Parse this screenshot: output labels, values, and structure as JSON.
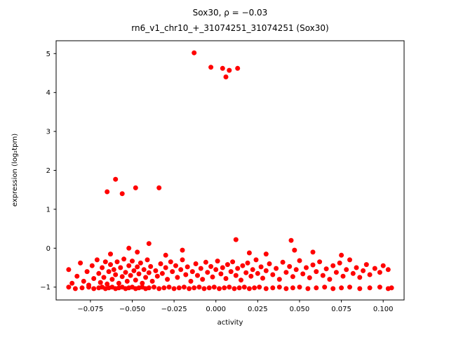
{
  "chart_data": {
    "type": "scatter",
    "title": "Sox30, ρ = −0.03",
    "subtitle": "rn6_v1_chr10_+_31074251_31074251 (Sox30)",
    "xlabel": "activity",
    "ylabel": "expression (log₂tpm)",
    "xlim": [
      -0.0955,
      0.1125
    ],
    "ylim": [
      -1.33,
      5.33
    ],
    "grid": false,
    "legend": "none",
    "marker_color": "#ff0000",
    "marker_radius": 3.5,
    "x_ticks": {
      "values": [
        -0.075,
        -0.05,
        -0.025,
        0.0,
        0.025,
        0.05,
        0.075,
        0.1
      ],
      "labels": [
        "−0.075",
        "−0.050",
        "−0.025",
        "0.000",
        "0.025",
        "0.050",
        "0.075",
        "0.100"
      ]
    },
    "y_ticks": {
      "values": [
        -1,
        0,
        1,
        2,
        3,
        4,
        5
      ],
      "labels": [
        "−1",
        "0",
        "1",
        "2",
        "3",
        "4",
        "5"
      ]
    },
    "points": [
      [
        -0.013,
        5.02
      ],
      [
        -0.003,
        4.65
      ],
      [
        0.004,
        4.62
      ],
      [
        0.006,
        4.4
      ],
      [
        0.008,
        4.57
      ],
      [
        0.013,
        4.62
      ],
      [
        -0.065,
        1.45
      ],
      [
        -0.06,
        1.77
      ],
      [
        -0.056,
        1.4
      ],
      [
        -0.048,
        1.55
      ],
      [
        -0.034,
        1.55
      ],
      [
        -0.063,
        -0.15
      ],
      [
        -0.052,
        0.0
      ],
      [
        -0.047,
        -0.1
      ],
      [
        -0.04,
        0.12
      ],
      [
        -0.03,
        -0.18
      ],
      [
        -0.02,
        -0.05
      ],
      [
        0.012,
        0.22
      ],
      [
        0.02,
        -0.12
      ],
      [
        0.03,
        -0.15
      ],
      [
        0.045,
        0.2
      ],
      [
        0.047,
        -0.05
      ],
      [
        0.058,
        -0.1
      ],
      [
        0.075,
        -0.18
      ],
      [
        -0.088,
        -1.0
      ],
      [
        -0.084,
        -1.04
      ],
      [
        -0.08,
        -1.02
      ],
      [
        -0.076,
        -1.0
      ],
      [
        -0.073,
        -1.04
      ],
      [
        -0.07,
        -1.02
      ],
      [
        -0.068,
        -1.0
      ],
      [
        -0.066,
        -1.04
      ],
      [
        -0.064,
        -1.02
      ],
      [
        -0.062,
        -1.0
      ],
      [
        -0.06,
        -1.04
      ],
      [
        -0.058,
        -1.02
      ],
      [
        -0.056,
        -1.0
      ],
      [
        -0.054,
        -1.04
      ],
      [
        -0.052,
        -1.02
      ],
      [
        -0.05,
        -1.0
      ],
      [
        -0.048,
        -1.04
      ],
      [
        -0.046,
        -1.02
      ],
      [
        -0.044,
        -1.0
      ],
      [
        -0.042,
        -1.04
      ],
      [
        -0.04,
        -1.02
      ],
      [
        -0.037,
        -1.0
      ],
      [
        -0.034,
        -1.04
      ],
      [
        -0.031,
        -1.02
      ],
      [
        -0.028,
        -1.0
      ],
      [
        -0.025,
        -1.04
      ],
      [
        -0.022,
        -1.02
      ],
      [
        -0.019,
        -1.0
      ],
      [
        -0.016,
        -1.04
      ],
      [
        -0.013,
        -1.02
      ],
      [
        -0.01,
        -1.0
      ],
      [
        -0.007,
        -1.04
      ],
      [
        -0.004,
        -1.02
      ],
      [
        -0.001,
        -1.0
      ],
      [
        0.002,
        -1.04
      ],
      [
        0.005,
        -1.02
      ],
      [
        0.008,
        -1.0
      ],
      [
        0.011,
        -1.04
      ],
      [
        0.014,
        -1.02
      ],
      [
        0.017,
        -1.0
      ],
      [
        0.02,
        -1.04
      ],
      [
        0.023,
        -1.02
      ],
      [
        0.026,
        -1.0
      ],
      [
        0.03,
        -1.04
      ],
      [
        0.034,
        -1.02
      ],
      [
        0.038,
        -1.0
      ],
      [
        0.042,
        -1.04
      ],
      [
        0.046,
        -1.02
      ],
      [
        0.05,
        -1.0
      ],
      [
        0.055,
        -1.04
      ],
      [
        0.06,
        -1.02
      ],
      [
        0.065,
        -1.0
      ],
      [
        0.07,
        -1.04
      ],
      [
        0.075,
        -1.02
      ],
      [
        0.08,
        -1.0
      ],
      [
        0.086,
        -1.04
      ],
      [
        0.092,
        -1.02
      ],
      [
        0.098,
        -1.0
      ],
      [
        0.103,
        -1.04
      ],
      [
        0.105,
        -1.02
      ],
      [
        -0.088,
        -0.55
      ],
      [
        -0.086,
        -0.9
      ],
      [
        -0.083,
        -0.72
      ],
      [
        -0.081,
        -0.38
      ],
      [
        -0.079,
        -0.85
      ],
      [
        -0.077,
        -0.6
      ],
      [
        -0.076,
        -0.95
      ],
      [
        -0.074,
        -0.45
      ],
      [
        -0.073,
        -0.78
      ],
      [
        -0.071,
        -0.3
      ],
      [
        -0.07,
        -0.65
      ],
      [
        -0.069,
        -0.88
      ],
      [
        -0.068,
        -0.5
      ],
      [
        -0.067,
        -0.75
      ],
      [
        -0.066,
        -0.35
      ],
      [
        -0.065,
        -0.92
      ],
      [
        -0.064,
        -0.6
      ],
      [
        -0.063,
        -0.42
      ],
      [
        -0.062,
        -0.8
      ],
      [
        -0.061,
        -0.55
      ],
      [
        -0.06,
        -0.68
      ],
      [
        -0.059,
        -0.35
      ],
      [
        -0.058,
        -0.9
      ],
      [
        -0.057,
        -0.5
      ],
      [
        -0.056,
        -0.73
      ],
      [
        -0.055,
        -0.28
      ],
      [
        -0.054,
        -0.62
      ],
      [
        -0.053,
        -0.85
      ],
      [
        -0.052,
        -0.45
      ],
      [
        -0.051,
        -0.7
      ],
      [
        -0.05,
        -0.33
      ],
      [
        -0.049,
        -0.58
      ],
      [
        -0.048,
        -0.82
      ],
      [
        -0.047,
        -0.48
      ],
      [
        -0.046,
        -0.66
      ],
      [
        -0.045,
        -0.38
      ],
      [
        -0.044,
        -0.9
      ],
      [
        -0.043,
        -0.55
      ],
      [
        -0.042,
        -0.75
      ],
      [
        -0.041,
        -0.3
      ],
      [
        -0.04,
        -0.63
      ],
      [
        -0.039,
        -0.47
      ],
      [
        -0.038,
        -0.85
      ],
      [
        -0.036,
        -0.58
      ],
      [
        -0.035,
        -0.72
      ],
      [
        -0.033,
        -0.4
      ],
      [
        -0.032,
        -0.65
      ],
      [
        -0.03,
        -0.5
      ],
      [
        -0.029,
        -0.8
      ],
      [
        -0.027,
        -0.35
      ],
      [
        -0.026,
        -0.6
      ],
      [
        -0.024,
        -0.45
      ],
      [
        -0.023,
        -0.75
      ],
      [
        -0.021,
        -0.55
      ],
      [
        -0.02,
        -0.3
      ],
      [
        -0.018,
        -0.68
      ],
      [
        -0.017,
        -0.48
      ],
      [
        -0.015,
        -0.85
      ],
      [
        -0.014,
        -0.6
      ],
      [
        -0.012,
        -0.4
      ],
      [
        -0.011,
        -0.7
      ],
      [
        -0.009,
        -0.52
      ],
      [
        -0.008,
        -0.8
      ],
      [
        -0.006,
        -0.36
      ],
      [
        -0.005,
        -0.62
      ],
      [
        -0.003,
        -0.47
      ],
      [
        -0.002,
        -0.74
      ],
      [
        0.0,
        -0.55
      ],
      [
        0.001,
        -0.33
      ],
      [
        0.003,
        -0.66
      ],
      [
        0.004,
        -0.5
      ],
      [
        0.006,
        -0.78
      ],
      [
        0.007,
        -0.42
      ],
      [
        0.009,
        -0.6
      ],
      [
        0.01,
        -0.35
      ],
      [
        0.012,
        -0.7
      ],
      [
        0.013,
        -0.52
      ],
      [
        0.015,
        -0.82
      ],
      [
        0.016,
        -0.45
      ],
      [
        0.018,
        -0.63
      ],
      [
        0.019,
        -0.38
      ],
      [
        0.021,
        -0.72
      ],
      [
        0.022,
        -0.55
      ],
      [
        0.024,
        -0.3
      ],
      [
        0.025,
        -0.65
      ],
      [
        0.027,
        -0.48
      ],
      [
        0.028,
        -0.77
      ],
      [
        0.03,
        -0.58
      ],
      [
        0.032,
        -0.4
      ],
      [
        0.034,
        -0.68
      ],
      [
        0.036,
        -0.52
      ],
      [
        0.038,
        -0.8
      ],
      [
        0.04,
        -0.36
      ],
      [
        0.042,
        -0.62
      ],
      [
        0.044,
        -0.47
      ],
      [
        0.046,
        -0.73
      ],
      [
        0.048,
        -0.55
      ],
      [
        0.05,
        -0.32
      ],
      [
        0.052,
        -0.66
      ],
      [
        0.054,
        -0.5
      ],
      [
        0.056,
        -0.76
      ],
      [
        0.058,
        -0.43
      ],
      [
        0.06,
        -0.6
      ],
      [
        0.062,
        -0.35
      ],
      [
        0.064,
        -0.7
      ],
      [
        0.066,
        -0.53
      ],
      [
        0.068,
        -0.8
      ],
      [
        0.07,
        -0.45
      ],
      [
        0.072,
        -0.62
      ],
      [
        0.074,
        -0.38
      ],
      [
        0.076,
        -0.72
      ],
      [
        0.078,
        -0.55
      ],
      [
        0.08,
        -0.3
      ],
      [
        0.082,
        -0.65
      ],
      [
        0.084,
        -0.5
      ],
      [
        0.086,
        -0.75
      ],
      [
        0.088,
        -0.58
      ],
      [
        0.09,
        -0.42
      ],
      [
        0.092,
        -0.68
      ],
      [
        0.095,
        -0.52
      ],
      [
        0.098,
        -0.62
      ],
      [
        0.1,
        -0.45
      ],
      [
        0.103,
        -0.55
      ]
    ]
  }
}
